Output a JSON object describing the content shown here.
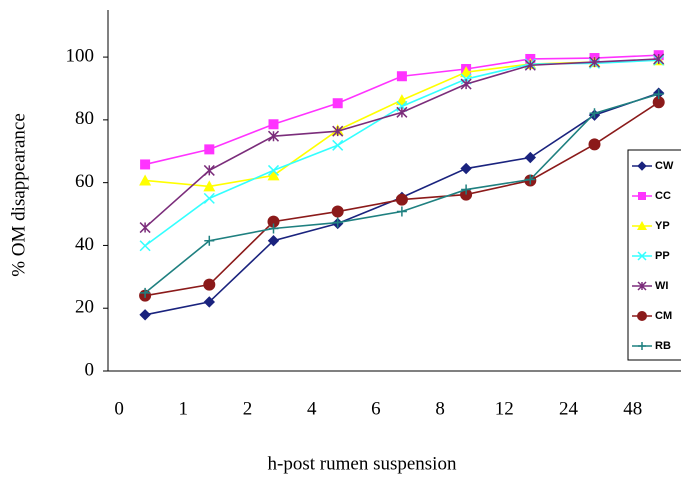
{
  "chart_data": {
    "type": "line",
    "x_label": "h-post rumen suspension",
    "y_label": "% OM disappearance",
    "categories": [
      "0",
      "1",
      "2",
      "4",
      "6",
      "8",
      "12",
      "24",
      "48"
    ],
    "ylim": [
      0,
      115
    ],
    "yticks": [
      0,
      20,
      40,
      60,
      80,
      100
    ],
    "grid": false,
    "legend": "right",
    "series": [
      {
        "name": "CW",
        "color": "#1a237e",
        "marker": "diamond",
        "values": [
          17.9,
          22,
          41.5,
          47,
          55.3,
          64.5,
          68,
          81.5,
          88.5
        ]
      },
      {
        "name": "CC",
        "color": "#ff33ff",
        "marker": "square",
        "values": [
          65.8,
          70.6,
          78.6,
          85.3,
          93.9,
          96.2,
          99.4,
          99.7,
          100.6
        ]
      },
      {
        "name": "YP",
        "color": "#ffff00",
        "marker": "triangle",
        "values": [
          60.7,
          58.8,
          62.3,
          76.7,
          86.3,
          95.2,
          97.8,
          98.4,
          99
        ]
      },
      {
        "name": "PP",
        "color": "#33ffff",
        "marker": "x",
        "values": [
          39.9,
          55,
          63.9,
          71.9,
          84.3,
          93,
          97.8,
          98,
          99
        ]
      },
      {
        "name": "WI",
        "color": "#7b2d7b",
        "marker": "star",
        "values": [
          45.7,
          63.9,
          74.8,
          76.4,
          82.4,
          91.4,
          97.4,
          98.4,
          99.4
        ]
      },
      {
        "name": "CM",
        "color": "#8b1a1a",
        "marker": "circle",
        "values": [
          24,
          27.5,
          47.6,
          50.8,
          54.6,
          56.2,
          60.7,
          72.2,
          85.6
        ]
      },
      {
        "name": "RB",
        "color": "#1f8080",
        "marker": "plus",
        "values": [
          24.9,
          41.5,
          45.4,
          47.3,
          50.8,
          57.8,
          61,
          82.1,
          88.2
        ]
      }
    ]
  }
}
